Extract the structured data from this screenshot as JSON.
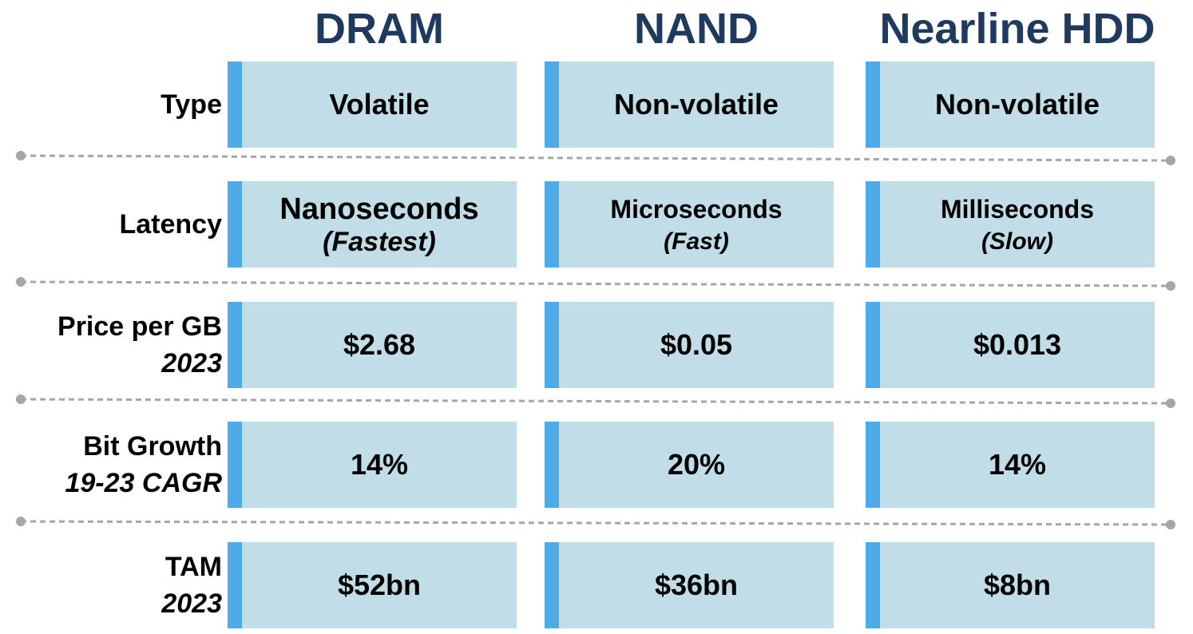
{
  "chart_data": {
    "type": "table",
    "columns": [
      "DRAM",
      "NAND",
      "Nearline HDD"
    ],
    "rows": [
      {
        "label": "Type",
        "sublabel": "",
        "cells": [
          {
            "main": "Volatile",
            "sub": ""
          },
          {
            "main": "Non-volatile",
            "sub": ""
          },
          {
            "main": "Non-volatile",
            "sub": ""
          }
        ]
      },
      {
        "label": "Latency",
        "sublabel": "",
        "cells": [
          {
            "main": "Nanoseconds",
            "sub": "(Fastest)"
          },
          {
            "main": "Microseconds",
            "sub": "(Fast)"
          },
          {
            "main": "Milliseconds",
            "sub": "(Slow)"
          }
        ]
      },
      {
        "label": "Price per GB",
        "sublabel": "2023",
        "cells": [
          {
            "main": "$2.68",
            "sub": ""
          },
          {
            "main": "$0.05",
            "sub": ""
          },
          {
            "main": "$0.013",
            "sub": ""
          }
        ]
      },
      {
        "label": "Bit Growth",
        "sublabel": "19-23 CAGR",
        "cells": [
          {
            "main": "14%",
            "sub": ""
          },
          {
            "main": "20%",
            "sub": ""
          },
          {
            "main": "14%",
            "sub": ""
          }
        ]
      },
      {
        "label": "TAM",
        "sublabel": "2023",
        "cells": [
          {
            "main": "$52bn",
            "sub": ""
          },
          {
            "main": "$36bn",
            "sub": ""
          },
          {
            "main": "$8bn",
            "sub": ""
          }
        ]
      }
    ],
    "colors": {
      "header_text": "#1f3a5f",
      "cell_fill": "#c0dde8",
      "cell_accent": "#4eabea",
      "divider": "#a6a6a6"
    }
  }
}
